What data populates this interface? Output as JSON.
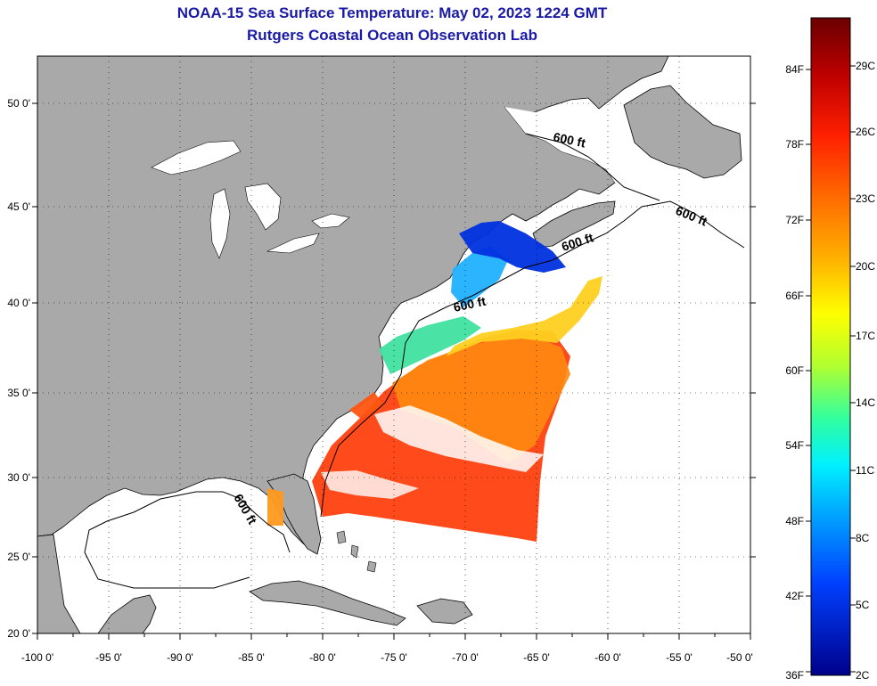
{
  "title": {
    "line1": "NOAA-15 Sea Surface Temperature:  May 02, 2023 1224 GMT",
    "line2": "Rutgers Coastal Ocean Observation Lab"
  },
  "map": {
    "lon_labels": [
      "-100 0'",
      "-95 0'",
      "-90 0'",
      "-85 0'",
      "-80 0'",
      "-75 0'",
      "-70 0'",
      "-65 0'",
      "-60 0'",
      "-55 0'",
      "-50 0'"
    ],
    "lat_labels": [
      "50 0'",
      "45 0'",
      "40 0'",
      "35 0'",
      "30 0'",
      "25 0'",
      "20 0'"
    ],
    "contour_label": "600 ft",
    "colors": {
      "land": "#a9a9a9",
      "no_data": "#ffffff",
      "coastline": "#000000"
    }
  },
  "colorbar": {
    "fahrenheit_labels": [
      "84F",
      "78F",
      "72F",
      "66F",
      "60F",
      "54F",
      "48F",
      "42F",
      "36F"
    ],
    "celsius_labels": [
      "29C",
      "26C",
      "23C",
      "20C",
      "17C",
      "14C",
      "11C",
      "8C",
      "5C",
      "2C"
    ],
    "gradient_top_to_bottom": [
      "#7a0000",
      "#c80000",
      "#ff2a00",
      "#ff7a00",
      "#ffbf00",
      "#ffff00",
      "#a0ff40",
      "#30ffb0",
      "#00e8ff",
      "#0090ff",
      "#0030ff",
      "#0000a0"
    ]
  }
}
